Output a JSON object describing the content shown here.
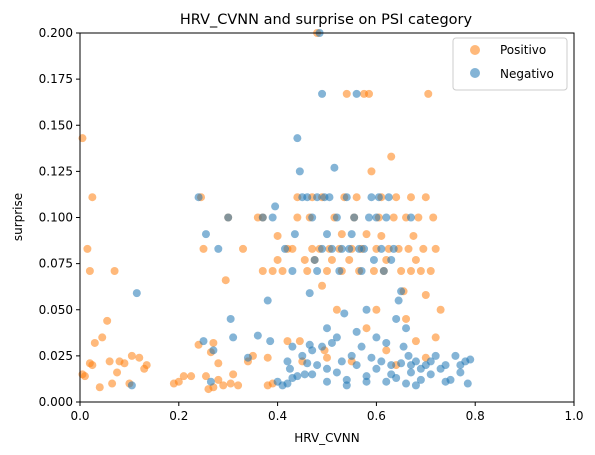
{
  "chart_data": {
    "type": "scatter",
    "title": "HRV_CVNN and surprise on PSI category",
    "xlabel": "HRV_CVNN",
    "ylabel": "surprise",
    "xlim": [
      0.0,
      1.0
    ],
    "ylim": [
      0.0,
      0.2
    ],
    "xticks": [
      "0.0",
      "0.2",
      "0.4",
      "0.6",
      "0.8",
      "1.0"
    ],
    "yticks": [
      "0.000",
      "0.025",
      "0.050",
      "0.075",
      "0.100",
      "0.125",
      "0.150",
      "0.175",
      "0.200"
    ],
    "grid": false,
    "legend_position": "top-right",
    "series": [
      {
        "name": "Positivo",
        "color": "#ff7f0e",
        "points": [
          [
            0.005,
            0.143
          ],
          [
            0.005,
            0.015
          ],
          [
            0.01,
            0.014
          ],
          [
            0.015,
            0.083
          ],
          [
            0.02,
            0.071
          ],
          [
            0.025,
            0.111
          ],
          [
            0.02,
            0.021
          ],
          [
            0.025,
            0.02
          ],
          [
            0.03,
            0.032
          ],
          [
            0.04,
            0.008
          ],
          [
            0.045,
            0.035
          ],
          [
            0.055,
            0.044
          ],
          [
            0.06,
            0.022
          ],
          [
            0.065,
            0.01
          ],
          [
            0.07,
            0.071
          ],
          [
            0.075,
            0.016
          ],
          [
            0.08,
            0.022
          ],
          [
            0.09,
            0.021
          ],
          [
            0.1,
            0.01
          ],
          [
            0.105,
            0.025
          ],
          [
            0.12,
            0.024
          ],
          [
            0.13,
            0.018
          ],
          [
            0.135,
            0.02
          ],
          [
            0.19,
            0.01
          ],
          [
            0.2,
            0.011
          ],
          [
            0.21,
            0.014
          ],
          [
            0.225,
            0.014
          ],
          [
            0.24,
            0.031
          ],
          [
            0.245,
            0.111
          ],
          [
            0.25,
            0.083
          ],
          [
            0.255,
            0.014
          ],
          [
            0.26,
            0.007
          ],
          [
            0.265,
            0.027
          ],
          [
            0.27,
            0.008
          ],
          [
            0.27,
            0.032
          ],
          [
            0.28,
            0.012
          ],
          [
            0.28,
            0.021
          ],
          [
            0.29,
            0.009
          ],
          [
            0.295,
            0.066
          ],
          [
            0.3,
            0.1
          ],
          [
            0.305,
            0.01
          ],
          [
            0.31,
            0.015
          ],
          [
            0.32,
            0.009
          ],
          [
            0.33,
            0.083
          ],
          [
            0.34,
            0.022
          ],
          [
            0.35,
            0.025
          ],
          [
            0.36,
            0.1
          ],
          [
            0.37,
            0.071
          ],
          [
            0.37,
            0.1
          ],
          [
            0.38,
            0.009
          ],
          [
            0.39,
            0.071
          ],
          [
            0.39,
            0.01
          ],
          [
            0.4,
            0.09
          ],
          [
            0.4,
            0.077
          ],
          [
            0.41,
            0.071
          ],
          [
            0.42,
            0.083
          ],
          [
            0.43,
            0.083
          ],
          [
            0.44,
            0.1
          ],
          [
            0.445,
            0.033
          ],
          [
            0.45,
            0.022
          ],
          [
            0.455,
            0.077
          ],
          [
            0.46,
            0.071
          ],
          [
            0.465,
            0.1
          ],
          [
            0.47,
            0.111
          ],
          [
            0.475,
            0.077
          ],
          [
            0.48,
            0.2
          ],
          [
            0.485,
            0.083
          ],
          [
            0.49,
            0.111
          ],
          [
            0.49,
            0.063
          ],
          [
            0.495,
            0.028
          ],
          [
            0.5,
            0.071
          ],
          [
            0.505,
            0.083
          ],
          [
            0.51,
            0.077
          ],
          [
            0.515,
            0.1
          ],
          [
            0.52,
            0.05
          ],
          [
            0.525,
            0.083
          ],
          [
            0.53,
            0.071
          ],
          [
            0.535,
            0.111
          ],
          [
            0.54,
            0.167
          ],
          [
            0.545,
            0.077
          ],
          [
            0.55,
            0.083
          ],
          [
            0.555,
            0.1
          ],
          [
            0.56,
            0.111
          ],
          [
            0.565,
            0.071
          ],
          [
            0.57,
            0.083
          ],
          [
            0.575,
            0.167
          ],
          [
            0.58,
            0.091
          ],
          [
            0.585,
            0.167
          ],
          [
            0.59,
            0.125
          ],
          [
            0.595,
            0.071
          ],
          [
            0.6,
            0.083
          ],
          [
            0.605,
            0.1
          ],
          [
            0.61,
            0.111
          ],
          [
            0.615,
            0.071
          ],
          [
            0.62,
            0.077
          ],
          [
            0.625,
            0.083
          ],
          [
            0.63,
            0.133
          ],
          [
            0.635,
            0.1
          ],
          [
            0.64,
            0.111
          ],
          [
            0.645,
            0.083
          ],
          [
            0.65,
            0.071
          ],
          [
            0.655,
            0.06
          ],
          [
            0.66,
            0.1
          ],
          [
            0.665,
            0.083
          ],
          [
            0.67,
            0.071
          ],
          [
            0.675,
            0.09
          ],
          [
            0.68,
            0.077
          ],
          [
            0.685,
            0.1
          ],
          [
            0.69,
            0.071
          ],
          [
            0.695,
            0.083
          ],
          [
            0.7,
            0.111
          ],
          [
            0.705,
            0.167
          ],
          [
            0.71,
            0.071
          ],
          [
            0.715,
            0.1
          ],
          [
            0.72,
            0.083
          ],
          [
            0.72,
            0.035
          ],
          [
            0.73,
            0.05
          ],
          [
            0.68,
            0.033
          ],
          [
            0.66,
            0.045
          ],
          [
            0.6,
            0.05
          ],
          [
            0.58,
            0.04
          ],
          [
            0.62,
            0.028
          ],
          [
            0.7,
            0.024
          ],
          [
            0.64,
            0.02
          ],
          [
            0.55,
            0.022
          ],
          [
            0.5,
            0.024
          ],
          [
            0.42,
            0.033
          ],
          [
            0.38,
            0.024
          ],
          [
            0.44,
            0.111
          ],
          [
            0.47,
            0.083
          ],
          [
            0.53,
            0.091
          ],
          [
            0.61,
            0.09
          ],
          [
            0.67,
            0.111
          ],
          [
            0.7,
            0.058
          ]
        ]
      },
      {
        "name": "Negativo",
        "color": "#1f77b4",
        "points": [
          [
            0.105,
            0.009
          ],
          [
            0.115,
            0.059
          ],
          [
            0.24,
            0.111
          ],
          [
            0.25,
            0.033
          ],
          [
            0.255,
            0.091
          ],
          [
            0.265,
            0.011
          ],
          [
            0.27,
            0.028
          ],
          [
            0.28,
            0.083
          ],
          [
            0.3,
            0.1
          ],
          [
            0.305,
            0.045
          ],
          [
            0.31,
            0.035
          ],
          [
            0.34,
            0.024
          ],
          [
            0.36,
            0.036
          ],
          [
            0.37,
            0.1
          ],
          [
            0.38,
            0.055
          ],
          [
            0.385,
            0.033
          ],
          [
            0.39,
            0.1
          ],
          [
            0.395,
            0.106
          ],
          [
            0.4,
            0.011
          ],
          [
            0.41,
            0.009
          ],
          [
            0.415,
            0.083
          ],
          [
            0.42,
            0.022
          ],
          [
            0.425,
            0.018
          ],
          [
            0.43,
            0.071
          ],
          [
            0.43,
            0.013
          ],
          [
            0.435,
            0.091
          ],
          [
            0.44,
            0.143
          ],
          [
            0.445,
            0.125
          ],
          [
            0.45,
            0.111
          ],
          [
            0.455,
            0.015
          ],
          [
            0.46,
            0.111
          ],
          [
            0.465,
            0.059
          ],
          [
            0.465,
            0.031
          ],
          [
            0.47,
            0.1
          ],
          [
            0.475,
            0.077
          ],
          [
            0.48,
            0.071
          ],
          [
            0.48,
            0.111
          ],
          [
            0.485,
            0.2
          ],
          [
            0.49,
            0.167
          ],
          [
            0.49,
            0.083
          ],
          [
            0.495,
            0.111
          ],
          [
            0.5,
            0.091
          ],
          [
            0.5,
            0.04
          ],
          [
            0.505,
            0.111
          ],
          [
            0.51,
            0.083
          ],
          [
            0.515,
            0.127
          ],
          [
            0.52,
            0.1
          ],
          [
            0.525,
            0.071
          ],
          [
            0.53,
            0.083
          ],
          [
            0.535,
            0.048
          ],
          [
            0.54,
            0.111
          ],
          [
            0.545,
            0.083
          ],
          [
            0.55,
            0.091
          ],
          [
            0.555,
            0.1
          ],
          [
            0.56,
            0.167
          ],
          [
            0.565,
            0.083
          ],
          [
            0.57,
            0.071
          ],
          [
            0.575,
            0.083
          ],
          [
            0.58,
            0.05
          ],
          [
            0.585,
            0.1
          ],
          [
            0.59,
            0.111
          ],
          [
            0.595,
            0.077
          ],
          [
            0.6,
            0.1
          ],
          [
            0.605,
            0.111
          ],
          [
            0.61,
            0.083
          ],
          [
            0.615,
            0.071
          ],
          [
            0.62,
            0.1
          ],
          [
            0.625,
            0.111
          ],
          [
            0.63,
            0.077
          ],
          [
            0.635,
            0.083
          ],
          [
            0.64,
            0.045
          ],
          [
            0.645,
            0.055
          ],
          [
            0.65,
            0.06
          ],
          [
            0.655,
            0.03
          ],
          [
            0.66,
            0.04
          ],
          [
            0.665,
            0.025
          ],
          [
            0.67,
            0.1
          ],
          [
            0.68,
            0.022
          ],
          [
            0.69,
            0.018
          ],
          [
            0.7,
            0.02
          ],
          [
            0.71,
            0.015
          ],
          [
            0.72,
            0.025
          ],
          [
            0.73,
            0.018
          ],
          [
            0.74,
            0.02
          ],
          [
            0.75,
            0.012
          ],
          [
            0.76,
            0.025
          ],
          [
            0.77,
            0.02
          ],
          [
            0.78,
            0.022
          ],
          [
            0.79,
            0.023
          ],
          [
            0.785,
            0.01
          ],
          [
            0.42,
            0.01
          ],
          [
            0.44,
            0.014
          ],
          [
            0.46,
            0.021
          ],
          [
            0.48,
            0.02
          ],
          [
            0.5,
            0.018
          ],
          [
            0.52,
            0.016
          ],
          [
            0.54,
            0.012
          ],
          [
            0.56,
            0.02
          ],
          [
            0.58,
            0.014
          ],
          [
            0.6,
            0.018
          ],
          [
            0.62,
            0.011
          ],
          [
            0.64,
            0.013
          ],
          [
            0.66,
            0.01
          ],
          [
            0.68,
            0.009
          ],
          [
            0.45,
            0.025
          ],
          [
            0.47,
            0.028
          ],
          [
            0.49,
            0.03
          ],
          [
            0.51,
            0.032
          ],
          [
            0.53,
            0.022
          ],
          [
            0.55,
            0.025
          ],
          [
            0.57,
            0.03
          ],
          [
            0.59,
            0.024
          ],
          [
            0.61,
            0.022
          ],
          [
            0.63,
            0.02
          ],
          [
            0.65,
            0.021
          ],
          [
            0.67,
            0.016
          ],
          [
            0.69,
            0.012
          ],
          [
            0.52,
            0.035
          ],
          [
            0.56,
            0.038
          ],
          [
            0.6,
            0.035
          ],
          [
            0.62,
            0.032
          ],
          [
            0.43,
            0.03
          ],
          [
            0.47,
            0.015
          ],
          [
            0.5,
            0.011
          ],
          [
            0.54,
            0.009
          ],
          [
            0.58,
            0.011
          ],
          [
            0.63,
            0.015
          ],
          [
            0.67,
            0.02
          ],
          [
            0.71,
            0.022
          ],
          [
            0.74,
            0.011
          ],
          [
            0.77,
            0.016
          ]
        ]
      }
    ]
  }
}
